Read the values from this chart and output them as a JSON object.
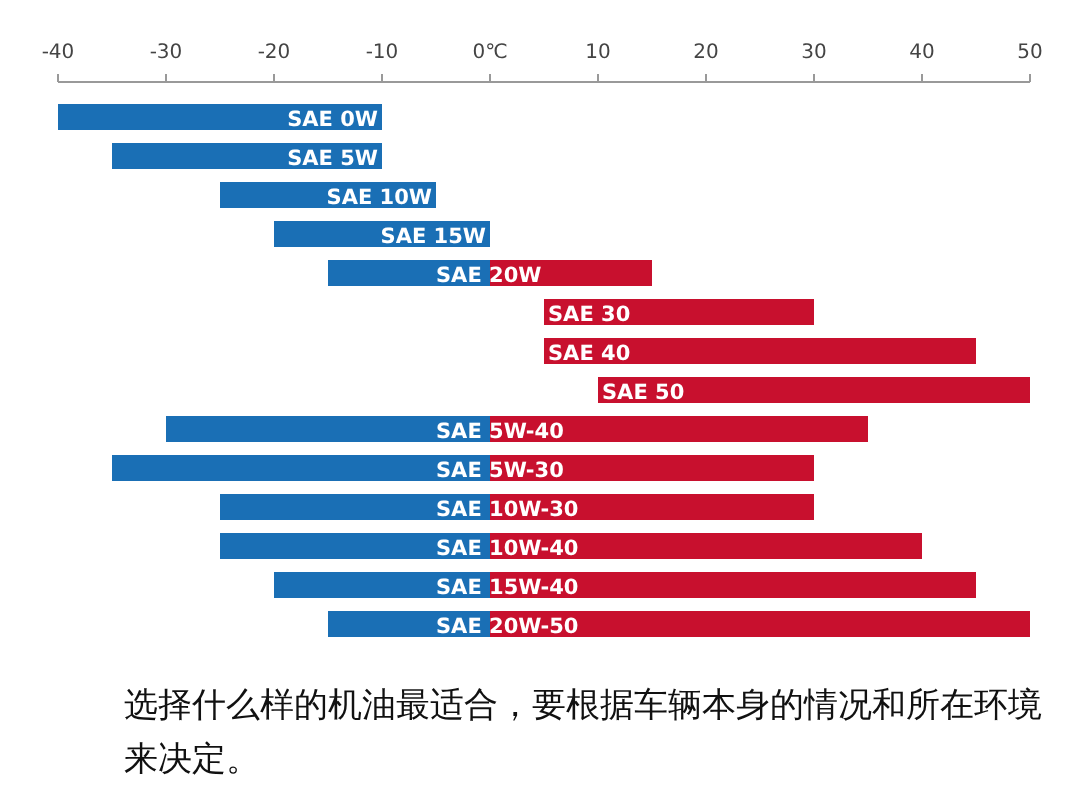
{
  "chart_data": {
    "type": "bar",
    "orientation": "horizontal",
    "tick_labels": "x",
    "categories": [
      "SAE 0W",
      "SAE 5W",
      "SAE 10W",
      "SAE 15W",
      "SAE 20W",
      "SAE 30",
      "SAE 40",
      "SAE 50",
      "SAE 5W-40",
      "SAE 5W-30",
      "SAE 10W-30",
      "SAE 10W-40",
      "SAE 15W-40",
      "SAE 20W-50"
    ],
    "series": [
      {
        "color": "#1a6fb5",
        "base": [
          -40,
          -35,
          -25,
          -20,
          -15,
          null,
          null,
          null,
          -30,
          -35,
          -25,
          -25,
          -20,
          -15
        ],
        "values": [
          30,
          25,
          20,
          20,
          15,
          null,
          null,
          null,
          30,
          35,
          25,
          25,
          20,
          15
        ]
      },
      {
        "color": "#c8102e",
        "base": [
          null,
          null,
          null,
          null,
          0,
          5,
          5,
          10,
          0,
          0,
          0,
          0,
          0,
          0
        ],
        "values": [
          null,
          null,
          null,
          null,
          15,
          25,
          40,
          40,
          35,
          30,
          30,
          40,
          45,
          50
        ]
      }
    ],
    "xlim": [
      -40,
      50
    ],
    "xticks": [
      -40,
      -30,
      -20,
      -10,
      {
        "value": 0,
        "label": "0℃"
      },
      10,
      20,
      30,
      40,
      50
    ],
    "annotations": [
      "选择什么样的机油最适合，要根据车辆本身的情况和所在环境来决定。"
    ]
  }
}
